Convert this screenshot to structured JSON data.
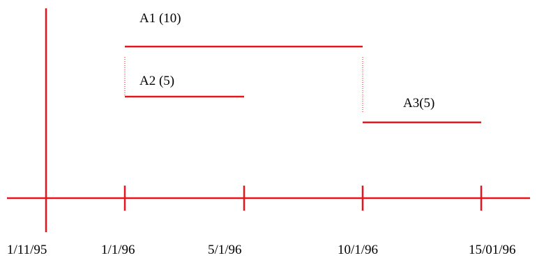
{
  "colors": {
    "line": "#e8141c",
    "text": "#000000",
    "background": "#ffffff"
  },
  "axis": {
    "ticks": [
      "1/11/95",
      "1/1/96",
      "5/1/96",
      "10/1/96",
      "15/01/96"
    ]
  },
  "activities": [
    {
      "label": "A1 (10)"
    },
    {
      "label": "A2 (5)"
    },
    {
      "label": "A3(5)"
    }
  ]
}
